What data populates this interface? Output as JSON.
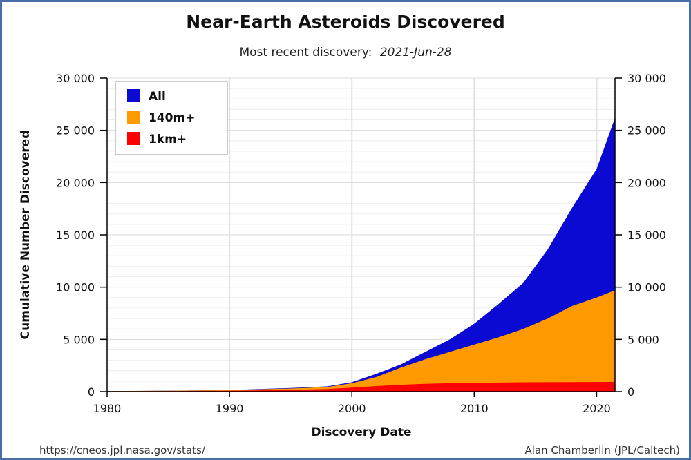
{
  "chart_data": {
    "type": "area",
    "title": "Near-Earth Asteroids Discovered",
    "subtitle_prefix": "Most recent discovery:",
    "subtitle_date": "2021-Jun-28",
    "xlabel": "Discovery Date",
    "ylabel": "Cumulative Number Discovered",
    "xlim": [
      1980,
      2021.5
    ],
    "ylim": [
      0,
      30000
    ],
    "x_ticks": [
      1980,
      1990,
      2000,
      2010,
      2020
    ],
    "y_ticks": [
      0,
      5000,
      10000,
      15000,
      20000,
      25000,
      30000
    ],
    "y_tick_labels": [
      "0",
      "5 000",
      "10 000",
      "15 000",
      "20 000",
      "25 000",
      "30 000"
    ],
    "grid": true,
    "legend_position": "top-left",
    "x": [
      1980,
      1985,
      1990,
      1995,
      1998,
      2000,
      2002,
      2004,
      2006,
      2008,
      2010,
      2012,
      2014,
      2016,
      2018,
      2020,
      2021.5
    ],
    "series": [
      {
        "name": "All",
        "color": "#0a0ad2",
        "values": [
          50,
          90,
          150,
          350,
          500,
          900,
          1700,
          2600,
          3800,
          5000,
          6500,
          8400,
          10400,
          13600,
          17600,
          21300,
          26200
        ]
      },
      {
        "name": "140m+",
        "color": "#ff9900",
        "values": [
          50,
          80,
          140,
          300,
          450,
          800,
          1400,
          2300,
          3100,
          3800,
          4500,
          5200,
          6000,
          7000,
          8200,
          9000,
          9700
        ]
      },
      {
        "name": "1km+",
        "color": "#ff0000",
        "values": [
          30,
          50,
          80,
          160,
          250,
          380,
          530,
          650,
          740,
          800,
          840,
          870,
          890,
          900,
          910,
          920,
          930
        ]
      }
    ]
  },
  "credits": {
    "source_url": "https://cneos.jpl.nasa.gov/stats/",
    "author": "Alan Chamberlin (JPL/Caltech)"
  }
}
